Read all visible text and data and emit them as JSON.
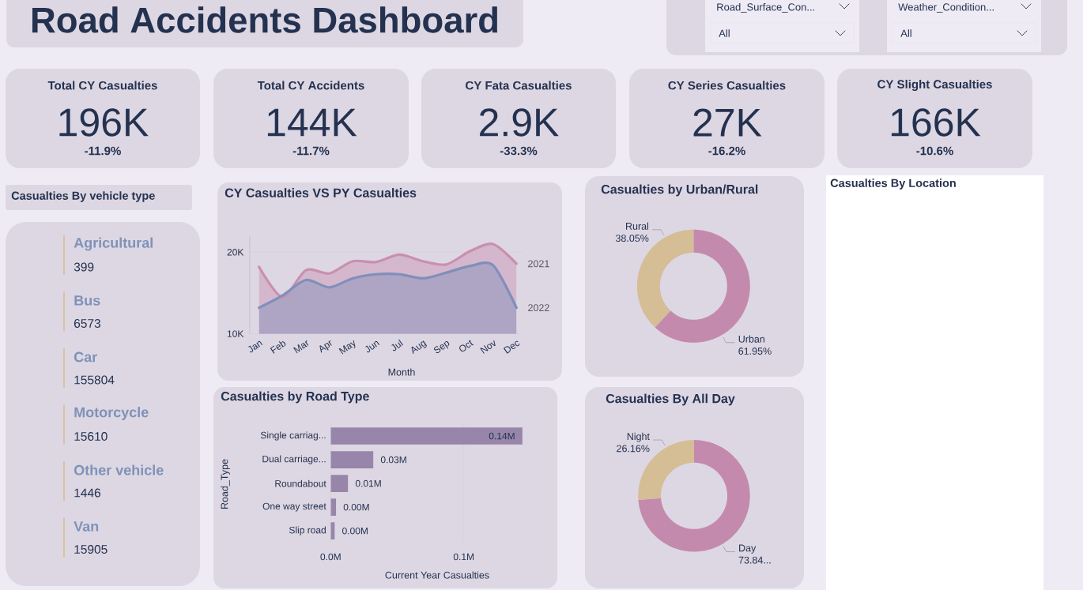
{
  "chart_data": [
    {
      "type": "other",
      "title": "Road Accidents Dashboard"
    },
    {
      "type": "other",
      "annotations": [
        "Road_Surface_Con...",
        "All",
        "Weather_Condition...",
        "All"
      ]
    },
    {
      "type": "other",
      "title": "Total CY Casualties",
      "annotations": [
        "196K",
        "-11.9%"
      ]
    },
    {
      "type": "other",
      "title": "Total CY Accidents",
      "annotations": [
        "144K",
        "-11.7%"
      ]
    },
    {
      "type": "other",
      "title": "CY Fata Casualties",
      "annotations": [
        "2.9K",
        "-33.3%"
      ]
    },
    {
      "type": "other",
      "title": "CY Series Casualties",
      "annotations": [
        "27K",
        "-16.2%"
      ]
    },
    {
      "type": "other",
      "title": "CY Slight Casualties",
      "annotations": [
        "166K",
        "-10.6%"
      ]
    },
    {
      "type": "other",
      "title": "Casualties By vehicle type",
      "categories": [
        "Agricultural",
        "Bus",
        "Car",
        "Motorcycle",
        "Other vehicle",
        "Van"
      ],
      "values": [
        399,
        6573,
        155804,
        15610,
        1446,
        15905
      ],
      "data_labels": true
    },
    {
      "type": "area",
      "title": "CY Casualties VS PY Casualties",
      "xlabel": "Month",
      "categories": [
        "Jan",
        "Feb",
        "Mar",
        "Apr",
        "May",
        "Jun",
        "Jul",
        "Aug",
        "Sep",
        "Oct",
        "Nov",
        "Dec"
      ],
      "series": [
        {
          "name": "2021",
          "color": "#c98fb0",
          "values": [
            18200,
            14500,
            17800,
            17400,
            18900,
            18800,
            19700,
            18900,
            18500,
            20100,
            21000,
            18600
          ]
        },
        {
          "name": "2022",
          "color": "#7f8fbb",
          "values": [
            13200,
            14700,
            16600,
            15700,
            16800,
            17300,
            17300,
            16800,
            17500,
            18300,
            18400,
            13200
          ]
        }
      ],
      "ylim": [
        10000,
        22000
      ],
      "yticks": [
        {
          "value": 10000,
          "label": "10K"
        },
        {
          "value": 20000,
          "label": "20K"
        }
      ],
      "grid": "y"
    },
    {
      "type": "donut",
      "title": "Casualties by Urban/Rural",
      "categories": [
        "Urban",
        "Rural"
      ],
      "values": [
        61.95,
        38.05
      ],
      "colors": [
        "#c48aad",
        "#d5bd96"
      ],
      "value_labels": [
        "61.95%",
        "38.05%"
      ]
    },
    {
      "type": "other",
      "title": "Casualties By Location"
    },
    {
      "type": "bar",
      "orientation": "horizontal",
      "title": "Casualties by Road Type",
      "xlabel": "Current Year Casualties",
      "ylabel": "Road_Type",
      "categories": [
        "Single carriag...",
        "Dual carriage...",
        "Roundabout",
        "One way street",
        "Slip road"
      ],
      "values": [
        0.144,
        0.032,
        0.013,
        0.004,
        0.003
      ],
      "color": "#9786a9",
      "value_labels": [
        "0.14M",
        "0.03M",
        "0.01M",
        "0.00M",
        "0.00M"
      ],
      "xlim": [
        0,
        0.145
      ],
      "xticks": [
        {
          "value": 0,
          "label": "0.0M"
        },
        {
          "value": 0.1,
          "label": "0.1M"
        }
      ],
      "grid": "x"
    },
    {
      "type": "donut",
      "title": "Casualties By All Day",
      "categories": [
        "Day",
        "Night"
      ],
      "values": [
        73.84,
        26.16
      ],
      "colors": [
        "#c48aad",
        "#d5bd96"
      ],
      "value_labels": [
        "73.84...",
        "26.16%"
      ]
    }
  ]
}
